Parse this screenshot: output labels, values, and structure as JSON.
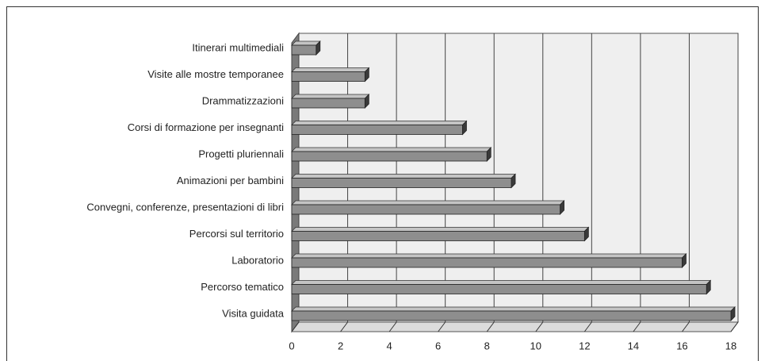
{
  "chart_data": {
    "type": "bar",
    "orientation": "horizontal",
    "categories": [
      "Itinerari multimediali",
      "Visite alle mostre temporanee",
      "Drammatizzazioni",
      "Corsi di formazione per insegnanti",
      "Progetti pluriennali",
      "Animazioni per bambini",
      "Convegni, conferenze, presentazioni di libri",
      "Percorsi sul territorio",
      "Laboratorio",
      "Percorso tematico",
      "Visita guidata"
    ],
    "values": [
      1,
      3,
      3,
      7,
      8,
      9,
      11,
      12,
      16,
      17,
      18
    ],
    "color": "#8e8e8e",
    "xlim": [
      0,
      18
    ],
    "xticks": [
      0,
      2,
      4,
      6,
      8,
      10,
      12,
      14,
      16,
      18
    ],
    "grid": true
  }
}
